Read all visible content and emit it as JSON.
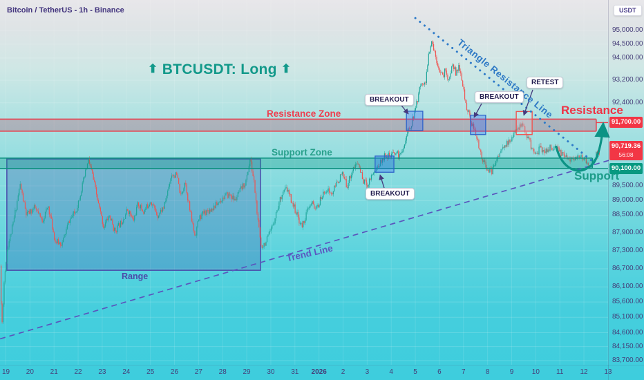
{
  "header": {
    "symbol_title": "Bitcoin / TetherUS - 1h - Binance",
    "currency_button": "USDT"
  },
  "annotations": {
    "main_label": {
      "arrow_left": "⬆",
      "text": "BTCUSDT: Long",
      "arrow_right": "⬆"
    },
    "resistance_zone_label": "Resistance Zone",
    "support_zone_label": "Support Zone",
    "resistance_label": "Resistance",
    "support_label": "Support",
    "trend_line_label": "Trend Line",
    "triangle_line_label": "Triangle Resistance Line",
    "range_label": "Range",
    "breakout_label_1": "BREAKOUT",
    "breakout_label_2": "BREAKOUT",
    "breakout_label_3": "BREAKOUT",
    "retest_label": "RETEST"
  },
  "price_axis": {
    "labels": [
      {
        "text": "95,000.00",
        "price": 95000
      },
      {
        "text": "94,500.00",
        "price": 94500
      },
      {
        "text": "94,000.00",
        "price": 94000
      },
      {
        "text": "93,200.00",
        "price": 93200
      },
      {
        "text": "92,400.00",
        "price": 92400
      },
      {
        "text": "89,500.00",
        "price": 89500
      },
      {
        "text": "89,000.00",
        "price": 89000
      },
      {
        "text": "88,500.00",
        "price": 88500
      },
      {
        "text": "87,900.00",
        "price": 87900
      },
      {
        "text": "87,300.00",
        "price": 87300
      },
      {
        "text": "86,700.00",
        "price": 86700
      },
      {
        "text": "86,100.00",
        "price": 86100
      },
      {
        "text": "85,600.00",
        "price": 85600
      },
      {
        "text": "85,100.00",
        "price": 85100
      },
      {
        "text": "84,600.00",
        "price": 84600
      },
      {
        "text": "84,150.00",
        "price": 84150
      },
      {
        "text": "83,700.00",
        "price": 83700
      }
    ],
    "badges": {
      "resistance_line": {
        "text": "91,700.00",
        "price": 91700
      },
      "current_price": {
        "text": "90,719.36",
        "price": 90719.36,
        "countdown": "56:08"
      },
      "support_line": {
        "text": "90,100.00",
        "price": 90100
      }
    }
  },
  "time_axis": {
    "labels": [
      {
        "text": "19"
      },
      {
        "text": "20"
      },
      {
        "text": "21"
      },
      {
        "text": "22"
      },
      {
        "text": "23"
      },
      {
        "text": "24"
      },
      {
        "text": "25"
      },
      {
        "text": "26"
      },
      {
        "text": "27"
      },
      {
        "text": "28"
      },
      {
        "text": "29"
      },
      {
        "text": "30"
      },
      {
        "text": "31"
      },
      {
        "text": "2026",
        "bold": true
      },
      {
        "text": "2"
      },
      {
        "text": "3"
      },
      {
        "text": "4"
      },
      {
        "text": "5"
      },
      {
        "text": "6"
      },
      {
        "text": "7"
      },
      {
        "text": "8"
      },
      {
        "text": "9"
      },
      {
        "text": "10"
      },
      {
        "text": "11"
      },
      {
        "text": "12"
      },
      {
        "text": "13"
      }
    ]
  },
  "chart_data": {
    "type": "candlestick",
    "symbol": "BTCUSDT",
    "interval": "1h",
    "exchange": "Binance",
    "trade_idea": "Long",
    "price_scale": "log",
    "current_price": 90719.36,
    "bar_countdown": "56:08",
    "visible_price_range": [
      83700,
      95400
    ],
    "time_axis_days": 26,
    "zones": {
      "resistance": {
        "top_price": 91820,
        "bottom_price": 91400,
        "line_price": 91700,
        "end_t": 24.51
      },
      "support": {
        "top_price": 90460,
        "bottom_price": 90100,
        "end_t": 24.35
      }
    },
    "range_box": {
      "from_t": 0.04,
      "to_t": 10.57,
      "top_price": 90430,
      "bottom_price": 86650
    },
    "trend_line": {
      "style": "dashed",
      "from": {
        "t": -0.24,
        "price": 84400
      },
      "to": {
        "t": 25.85,
        "price": 90580
      }
    },
    "triangle_line": {
      "style": "dotted",
      "from": {
        "t": 17.0,
        "price": 95450
      },
      "to": {
        "t": 24.37,
        "price": 90340
      }
    },
    "breakout_boxes": [
      {
        "from_t": 15.33,
        "to_t": 16.11,
        "top_price": 90530,
        "bottom_price": 89970
      },
      {
        "from_t": 16.63,
        "to_t": 17.31,
        "top_price": 92100,
        "bottom_price": 91420
      },
      {
        "from_t": 19.29,
        "to_t": 19.92,
        "top_price": 91960,
        "bottom_price": 91280
      }
    ],
    "retest_box": {
      "from_t": 21.19,
      "to_t": 21.85,
      "top_price": 92090,
      "bottom_price": 91280
    },
    "swing_arrow": {
      "from": {
        "t": 22.85,
        "price": 90850
      },
      "bottom": {
        "t": 24.2,
        "price": 90150
      },
      "to": {
        "t": 24.8,
        "price": 91650
      }
    },
    "price_path": [
      [
        -0.24,
        86800
      ],
      [
        -0.17,
        84700
      ],
      [
        -0.08,
        86200
      ],
      [
        0.05,
        87350
      ],
      [
        0.3,
        88200
      ],
      [
        0.59,
        89550
      ],
      [
        0.85,
        88500
      ],
      [
        1.2,
        88750
      ],
      [
        1.5,
        88300
      ],
      [
        1.76,
        88800
      ],
      [
        2.05,
        87600
      ],
      [
        2.34,
        87550
      ],
      [
        2.62,
        88300
      ],
      [
        2.91,
        88650
      ],
      [
        3.2,
        89600
      ],
      [
        3.43,
        90400
      ],
      [
        3.6,
        89850
      ],
      [
        3.83,
        88900
      ],
      [
        4.06,
        88100
      ],
      [
        4.29,
        88500
      ],
      [
        4.52,
        87950
      ],
      [
        4.78,
        88250
      ],
      [
        5.06,
        88700
      ],
      [
        5.29,
        88300
      ],
      [
        5.49,
        88900
      ],
      [
        5.72,
        88600
      ],
      [
        6.01,
        89000
      ],
      [
        6.3,
        88500
      ],
      [
        6.58,
        88800
      ],
      [
        6.87,
        89900
      ],
      [
        7.1,
        89850
      ],
      [
        7.27,
        89100
      ],
      [
        7.44,
        89700
      ],
      [
        7.65,
        88600
      ],
      [
        7.85,
        87800
      ],
      [
        8.02,
        88400
      ],
      [
        8.25,
        88600
      ],
      [
        8.51,
        88700
      ],
      [
        8.79,
        88900
      ],
      [
        9.08,
        89150
      ],
      [
        9.31,
        89200
      ],
      [
        9.51,
        89000
      ],
      [
        9.74,
        89350
      ],
      [
        9.97,
        89650
      ],
      [
        10.14,
        90430
      ],
      [
        10.31,
        89600
      ],
      [
        10.46,
        88300
      ],
      [
        10.6,
        87450
      ],
      [
        10.8,
        87600
      ],
      [
        11.0,
        87950
      ],
      [
        11.23,
        88600
      ],
      [
        11.46,
        89250
      ],
      [
        11.66,
        89400
      ],
      [
        11.86,
        89000
      ],
      [
        12.09,
        88500
      ],
      [
        12.29,
        88100
      ],
      [
        12.52,
        88650
      ],
      [
        12.72,
        88900
      ],
      [
        12.9,
        88700
      ],
      [
        13.1,
        89100
      ],
      [
        13.3,
        89400
      ],
      [
        13.53,
        89200
      ],
      [
        13.73,
        89600
      ],
      [
        13.96,
        89900
      ],
      [
        14.16,
        89500
      ],
      [
        14.39,
        90050
      ],
      [
        14.62,
        90300
      ],
      [
        14.82,
        89700
      ],
      [
        15.02,
        89550
      ],
      [
        15.19,
        89900
      ],
      [
        15.39,
        90100
      ],
      [
        15.59,
        90350
      ],
      [
        15.76,
        90600
      ],
      [
        15.97,
        90480
      ],
      [
        16.17,
        90700
      ],
      [
        16.34,
        90500
      ],
      [
        16.54,
        90950
      ],
      [
        16.68,
        91350
      ],
      [
        16.83,
        91650
      ],
      [
        16.97,
        92050
      ],
      [
        17.11,
        92600
      ],
      [
        17.26,
        93200
      ],
      [
        17.4,
        93000
      ],
      [
        17.54,
        94000
      ],
      [
        17.69,
        94600
      ],
      [
        17.83,
        94100
      ],
      [
        17.97,
        93700
      ],
      [
        18.12,
        93300
      ],
      [
        18.26,
        93600
      ],
      [
        18.4,
        93100
      ],
      [
        18.55,
        93850
      ],
      [
        18.69,
        93400
      ],
      [
        18.83,
        93700
      ],
      [
        18.98,
        92900
      ],
      [
        19.12,
        92300
      ],
      [
        19.26,
        91900
      ],
      [
        19.41,
        91500
      ],
      [
        19.55,
        91100
      ],
      [
        19.7,
        90700
      ],
      [
        19.84,
        90300
      ],
      [
        19.98,
        90100
      ],
      [
        20.18,
        89950
      ],
      [
        20.35,
        90400
      ],
      [
        20.55,
        90700
      ],
      [
        20.76,
        90900
      ],
      [
        20.98,
        91100
      ],
      [
        21.21,
        91400
      ],
      [
        21.42,
        91680
      ],
      [
        21.62,
        91300
      ],
      [
        21.79,
        90900
      ],
      [
        21.99,
        90600
      ],
      [
        22.19,
        90800
      ],
      [
        22.42,
        90700
      ],
      [
        22.65,
        90850
      ],
      [
        22.88,
        90750
      ],
      [
        23.11,
        90600
      ],
      [
        23.34,
        90500
      ],
      [
        23.57,
        90350
      ],
      [
        23.8,
        90500
      ],
      [
        24.03,
        90400
      ],
      [
        24.28,
        90180
      ],
      [
        24.49,
        90550
      ],
      [
        24.66,
        90719.36
      ]
    ],
    "colors": {
      "up": "#1fa59a",
      "down": "#ef5350",
      "resistance": "#e8404e",
      "support": "#0d9180",
      "trend": "#5a55bd",
      "triangle": "#2d7ac8",
      "range": "#4a52ad",
      "breakout_box": "#2d62c9",
      "retest_box": "#ef5350",
      "badge_red": "#f23645",
      "badge_green": "#089981",
      "swing_arrow": "#0c9385"
    }
  }
}
